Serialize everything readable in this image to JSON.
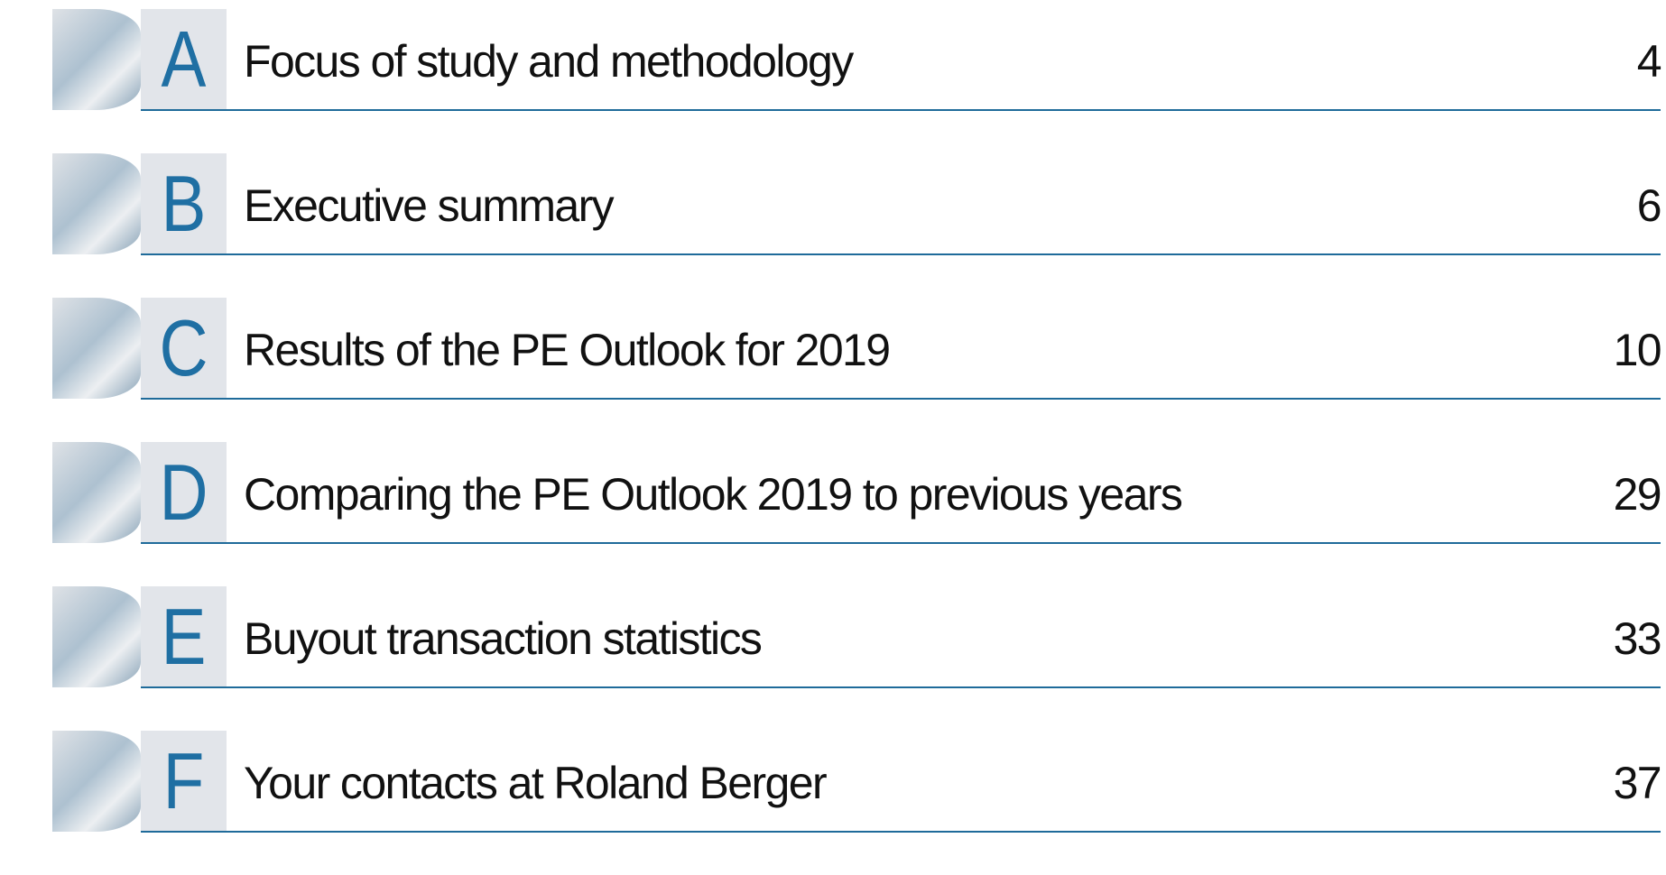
{
  "toc": {
    "rows": [
      {
        "letter": "A",
        "title": "Focus of study and methodology",
        "page": 4
      },
      {
        "letter": "B",
        "title": "Executive summary",
        "page": 6
      },
      {
        "letter": "C",
        "title": "Results of the PE Outlook for 2019",
        "page": 10
      },
      {
        "letter": "D",
        "title": "Comparing the PE Outlook 2019 to previous years",
        "page": 29
      },
      {
        "letter": "E",
        "title": "Buyout transaction statistics",
        "page": 33
      },
      {
        "letter": "F",
        "title": "Your contacts at Roland Berger",
        "page": 37
      }
    ]
  }
}
